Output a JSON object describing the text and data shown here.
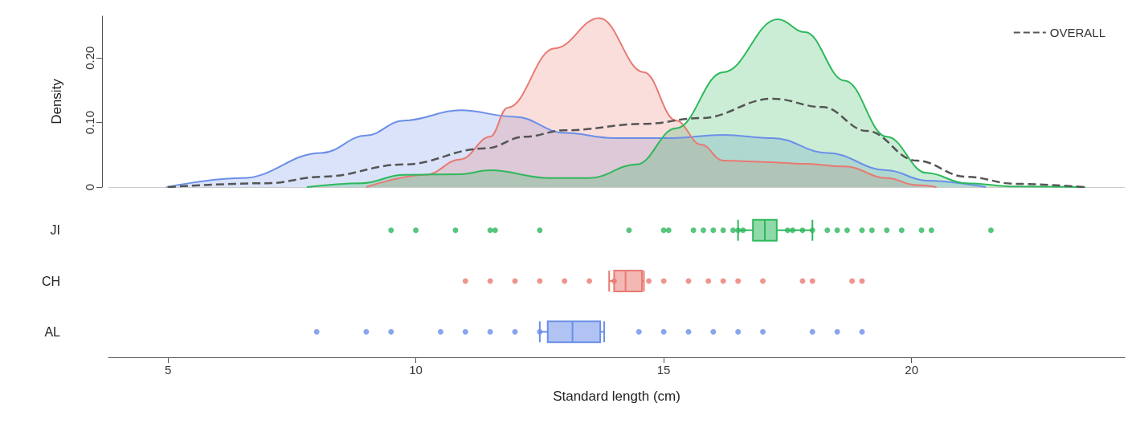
{
  "chart_data": [
    {
      "type": "area",
      "ylabel": "Density",
      "xlim": [
        3.8,
        24.3
      ],
      "ylim": [
        0,
        0.265
      ],
      "yticks": [
        0,
        {
          "value": 0.1,
          "label": "0.10"
        },
        {
          "value": 0.2,
          "label": "0.20"
        }
      ],
      "tick_labels": "y",
      "legend": "top right",
      "series": [
        {
          "color": "#6b8fe8",
          "x": [
            4.97,
            6.5,
            8.1,
            9.0,
            9.75,
            10.9,
            12.0,
            13.0,
            14.0,
            15.1,
            16.2,
            17.2,
            18.3,
            19.5,
            20.3,
            21.5
          ],
          "values": [
            0,
            0.014,
            0.053,
            0.08,
            0.103,
            0.119,
            0.109,
            0.084,
            0.076,
            0.076,
            0.081,
            0.076,
            0.053,
            0.026,
            0.01,
            0
          ]
        },
        {
          "color": "#e87a72",
          "x": [
            9.0,
            10.2,
            10.9,
            11.5,
            11.85,
            12.8,
            13.7,
            14.6,
            15.25,
            15.75,
            16.2,
            17.0,
            17.85,
            18.65,
            19.5,
            20.1,
            20.5
          ],
          "values": [
            0,
            0.019,
            0.043,
            0.078,
            0.123,
            0.215,
            0.262,
            0.178,
            0.103,
            0.066,
            0.041,
            0.039,
            0.036,
            0.032,
            0.014,
            0.003,
            0
          ]
        },
        {
          "color": "#2eb85c",
          "x": [
            7.8,
            8.9,
            9.75,
            10.9,
            11.5,
            12.7,
            13.5,
            14.45,
            15.25,
            16.2,
            17.3,
            17.85,
            18.65,
            19.5,
            20.3,
            21.1,
            22.1,
            23.5
          ],
          "values": [
            0,
            0.006,
            0.019,
            0.02,
            0.026,
            0.014,
            0.014,
            0.035,
            0.091,
            0.178,
            0.26,
            0.24,
            0.165,
            0.078,
            0.022,
            0.006,
            0.001,
            0
          ]
        },
        {
          "type": "line",
          "name": "OVERALL",
          "color": "#555555",
          "line_style": "dashed",
          "x": [
            5.0,
            7.0,
            8.1,
            9.75,
            11.4,
            12.2,
            13.0,
            14.6,
            15.75,
            17.2,
            18.2,
            19.1,
            20.1,
            21.1,
            22.1,
            23.5
          ],
          "values": [
            0,
            0.006,
            0.016,
            0.035,
            0.06,
            0.078,
            0.088,
            0.098,
            0.107,
            0.137,
            0.124,
            0.087,
            0.041,
            0.016,
            0.005,
            0
          ]
        }
      ]
    },
    {
      "type": "box",
      "orientation": "horizontal",
      "categories": [
        "JI",
        "CH",
        "AL"
      ],
      "xlabel": "Standard length (cm)",
      "xlim": [
        3.8,
        24.3
      ],
      "xticks": [
        5,
        10,
        15,
        20
      ],
      "series": [
        {
          "type": "box",
          "colors": [
            "#2eb85c",
            "#e87a72",
            "#6b8fe8"
          ],
          "boxes": [
            {
              "low": 16.5,
              "q1": 16.8,
              "median": 17.04,
              "q3": 17.28,
              "high": 18.0
            },
            {
              "low": 13.9,
              "q1": 14.0,
              "median": 14.23,
              "q3": 14.56,
              "high": 14.6
            },
            {
              "low": 12.5,
              "q1": 12.66,
              "median": 13.16,
              "q3": 13.72,
              "high": 13.8
            }
          ]
        },
        {
          "type": "scatter",
          "color": "#2eb85c",
          "values": [
            9.5,
            10.0,
            10.8,
            11.5,
            11.6,
            12.5,
            14.3,
            15.0,
            15.1,
            15.6,
            15.8,
            16.0,
            16.2,
            16.4,
            16.5,
            16.6,
            17.5,
            17.6,
            17.8,
            18.0,
            18.3,
            18.5,
            18.7,
            19.0,
            19.2,
            19.5,
            19.8,
            20.2,
            20.4,
            21.6
          ],
          "x": [
            "JI",
            "JI",
            "JI",
            "JI",
            "JI",
            "JI",
            "JI",
            "JI",
            "JI",
            "JI",
            "JI",
            "JI",
            "JI",
            "JI",
            "JI",
            "JI",
            "JI",
            "JI",
            "JI",
            "JI",
            "JI",
            "JI",
            "JI",
            "JI",
            "JI",
            "JI",
            "JI",
            "JI",
            "JI",
            "JI"
          ]
        },
        {
          "type": "scatter",
          "color": "#e87a72",
          "values": [
            11.0,
            11.5,
            12.0,
            12.5,
            13.0,
            13.5,
            14.0,
            14.7,
            15.0,
            15.5,
            15.9,
            16.2,
            16.5,
            17.0,
            17.8,
            18.0,
            18.8,
            19.0
          ],
          "x": [
            "CH",
            "CH",
            "CH",
            "CH",
            "CH",
            "CH",
            "CH",
            "CH",
            "CH",
            "CH",
            "CH",
            "CH",
            "CH",
            "CH",
            "CH",
            "CH",
            "CH",
            "CH"
          ]
        },
        {
          "type": "scatter",
          "color": "#6b8fe8",
          "values": [
            8.0,
            9.0,
            9.5,
            10.5,
            11.0,
            11.5,
            12.0,
            12.5,
            14.5,
            15.0,
            15.5,
            16.0,
            16.5,
            17.0,
            18.0,
            18.5,
            19.0
          ],
          "x": [
            "AL",
            "AL",
            "AL",
            "AL",
            "AL",
            "AL",
            "AL",
            "AL",
            "AL",
            "AL",
            "AL",
            "AL",
            "AL",
            "AL",
            "AL",
            "AL",
            "AL"
          ]
        }
      ]
    }
  ]
}
